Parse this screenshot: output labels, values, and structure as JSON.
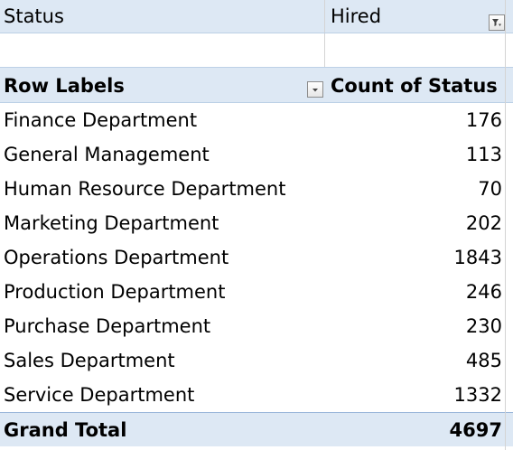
{
  "filter": {
    "field": "Status",
    "value": "Hired",
    "filter_icon": "filter-applied-icon"
  },
  "pivot": {
    "header": {
      "row_labels": "Row Labels",
      "value_header": "Count of Status",
      "dropdown_icon": "dropdown-arrow-icon"
    },
    "rows": [
      {
        "label": "Finance Department",
        "count": "176"
      },
      {
        "label": "General Management",
        "count": "113"
      },
      {
        "label": "Human Resource Department",
        "count": "70"
      },
      {
        "label": "Marketing Department",
        "count": "202"
      },
      {
        "label": "Operations Department",
        "count": "1843"
      },
      {
        "label": "Production Department",
        "count": "246"
      },
      {
        "label": "Purchase Department",
        "count": "230"
      },
      {
        "label": "Sales Department",
        "count": "485"
      },
      {
        "label": "Service Department",
        "count": "1332"
      }
    ],
    "grand_total": {
      "label": "Grand Total",
      "count": "4697"
    }
  },
  "colors": {
    "header_fill": "#dde8f4",
    "header_border": "#bcd0e6",
    "gridline": "#d4d4d4"
  }
}
